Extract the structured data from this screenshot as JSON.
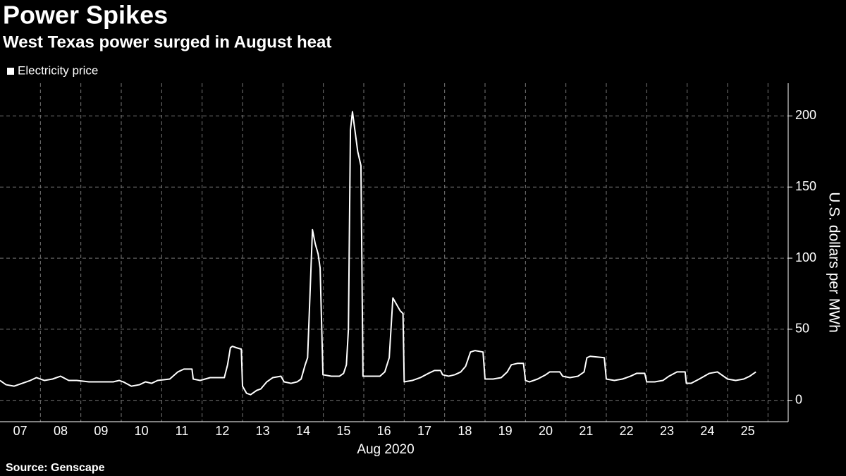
{
  "chart_data": {
    "type": "line",
    "title": "Power Spikes",
    "subtitle": "West Texas power surged in August heat",
    "xlabel": "Aug 2020",
    "ylabel": "U.S. dollars per MWh",
    "source": "Source: Genscape",
    "xlim": [
      7,
      26.5
    ],
    "ylim": [
      -15,
      223
    ],
    "yticks": [
      0,
      50,
      100,
      150,
      200
    ],
    "xticks": [
      {
        "value": 7.5,
        "label": "07"
      },
      {
        "value": 8.5,
        "label": "08"
      },
      {
        "value": 9.5,
        "label": "09"
      },
      {
        "value": 10.5,
        "label": "10"
      },
      {
        "value": 11.5,
        "label": "11"
      },
      {
        "value": 12.5,
        "label": "12"
      },
      {
        "value": 13.5,
        "label": "13"
      },
      {
        "value": 14.5,
        "label": "14"
      },
      {
        "value": 15.5,
        "label": "15"
      },
      {
        "value": 16.5,
        "label": "16"
      },
      {
        "value": 17.5,
        "label": "17"
      },
      {
        "value": 18.5,
        "label": "18"
      },
      {
        "value": 19.5,
        "label": "19"
      },
      {
        "value": 20.5,
        "label": "20"
      },
      {
        "value": 21.5,
        "label": "21"
      },
      {
        "value": 22.5,
        "label": "22"
      },
      {
        "value": 23.5,
        "label": "23"
      },
      {
        "value": 24.5,
        "label": "24"
      },
      {
        "value": 25.5,
        "label": "25"
      }
    ],
    "x_gridlines": [
      8,
      9,
      10,
      11,
      12,
      13,
      14,
      15,
      16,
      17,
      18,
      19,
      20,
      21,
      22,
      23,
      24,
      25,
      26
    ],
    "grid": true,
    "x": [
      7.0,
      7.15,
      7.35,
      7.55,
      7.75,
      7.9,
      8.1,
      8.3,
      8.5,
      8.7,
      8.9,
      9.2,
      9.5,
      9.8,
      9.95,
      10.05,
      10.25,
      10.45,
      10.6,
      10.75,
      10.9,
      11.2,
      11.4,
      11.55,
      11.75,
      11.78,
      11.95,
      12.2,
      12.55,
      12.63,
      12.7,
      12.75,
      12.85,
      12.97,
      13.0,
      13.1,
      13.2,
      13.35,
      13.45,
      13.6,
      13.75,
      13.95,
      14.03,
      14.2,
      14.35,
      14.45,
      14.55,
      14.61,
      14.73,
      14.8,
      14.87,
      14.92,
      14.99,
      15.2,
      15.4,
      15.5,
      15.57,
      15.62,
      15.67,
      15.72,
      15.78,
      15.85,
      15.93,
      15.98,
      16.2,
      16.4,
      16.52,
      16.63,
      16.72,
      16.8,
      16.9,
      16.97,
      17.0,
      17.2,
      17.4,
      17.6,
      17.75,
      17.9,
      17.95,
      18.1,
      18.25,
      18.4,
      18.52,
      18.64,
      18.75,
      18.95,
      19.0,
      19.2,
      19.4,
      19.55,
      19.65,
      19.8,
      19.95,
      20.0,
      20.1,
      20.3,
      20.5,
      20.6,
      20.85,
      20.92,
      21.1,
      21.3,
      21.45,
      21.52,
      21.6,
      21.95,
      22.0,
      22.2,
      22.4,
      22.6,
      22.75,
      22.95,
      23.0,
      23.2,
      23.4,
      23.55,
      23.75,
      23.95,
      23.98,
      24.1,
      24.3,
      24.55,
      24.75,
      24.85,
      25.0,
      25.2,
      25.4,
      25.55,
      25.7
    ],
    "series": [
      {
        "name": "Electricity price",
        "color": "#ffffff",
        "values": [
          14,
          11,
          10,
          12,
          14,
          16,
          14,
          15,
          17,
          14,
          14,
          13,
          13,
          13,
          14,
          13,
          10,
          11,
          13,
          12,
          14,
          15,
          20,
          22,
          22,
          15,
          14,
          16,
          16,
          25,
          37,
          38,
          37,
          36,
          10,
          5,
          4,
          7,
          8,
          13,
          16,
          17,
          13,
          12,
          13,
          15,
          25,
          30,
          120,
          110,
          103,
          93,
          18,
          17,
          17,
          19,
          25,
          50,
          190,
          203,
          190,
          175,
          165,
          17,
          17,
          17,
          20,
          30,
          72,
          68,
          63,
          61,
          13,
          14,
          16,
          19,
          21,
          21,
          18,
          17,
          18,
          20,
          24,
          34,
          35,
          34,
          15,
          15,
          16,
          20,
          25,
          26,
          26,
          14,
          13,
          15,
          18,
          20,
          20,
          17,
          16,
          17,
          20,
          30,
          31,
          30,
          15,
          14,
          15,
          17,
          19,
          19,
          13,
          13,
          14,
          17,
          20,
          20,
          12,
          12,
          15,
          19,
          20,
          18,
          15,
          14,
          15,
          17,
          20
        ]
      }
    ]
  }
}
